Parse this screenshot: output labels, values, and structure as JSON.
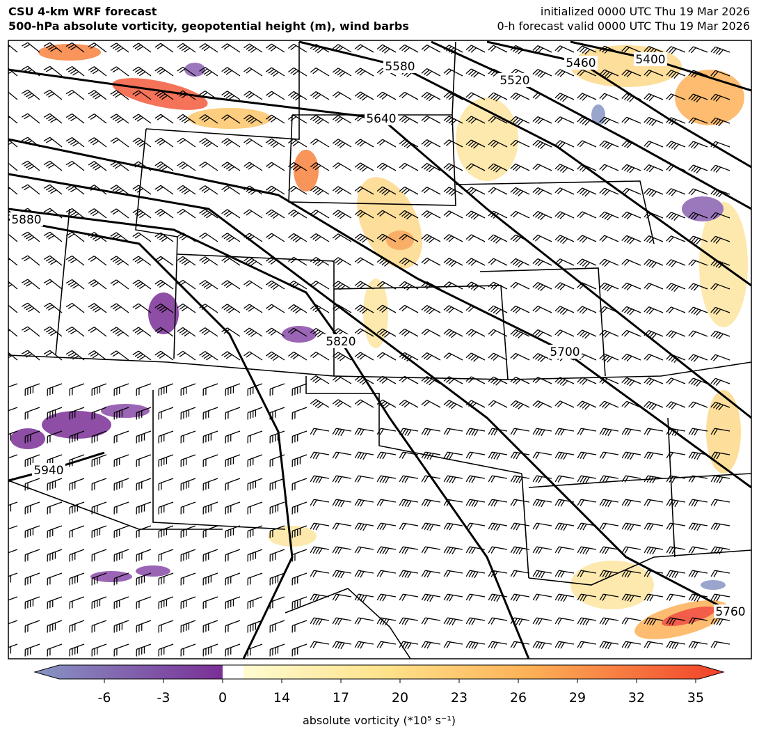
{
  "header": {
    "title": "CSU 4-km WRF forecast",
    "subtitle": "500-hPa absolute vorticity, geopotential height (m), wind barbs",
    "init": "initialized 0000 UTC Thu 19 Mar 2026",
    "valid": "0-h forecast valid 0000 UTC Thu 19 Mar 2026"
  },
  "map": {
    "contour_labels": [
      5580,
      5520,
      5460,
      5400,
      5640,
      5880,
      5820,
      5700,
      5940,
      5760
    ]
  },
  "colorbar": {
    "label": "absolute vorticity (*10⁵ s⁻¹)",
    "ticks": [
      -6,
      -3,
      0,
      14,
      17,
      20,
      23,
      26,
      29,
      32,
      35
    ]
  }
}
